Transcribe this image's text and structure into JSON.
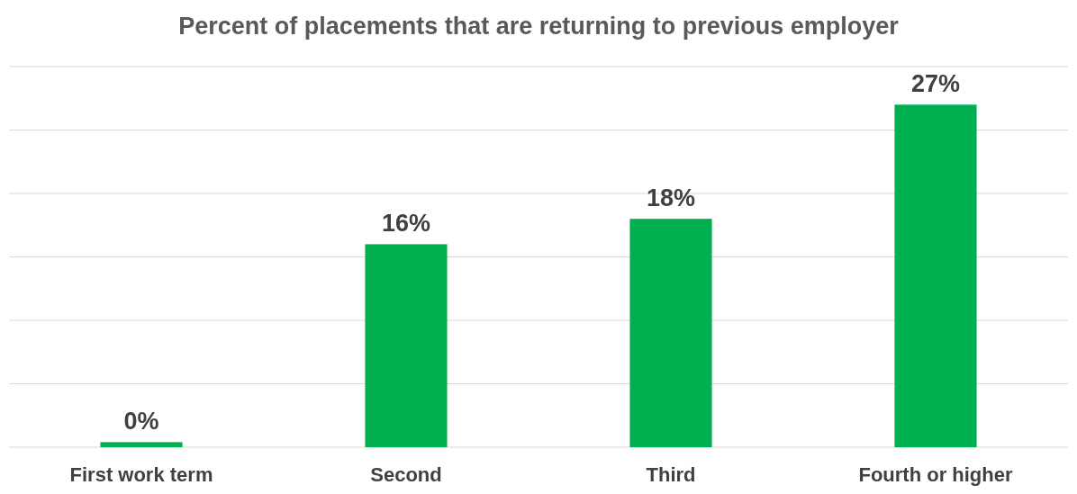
{
  "chart_data": {
    "type": "bar",
    "title": "Percent of placements that are returning to previous employer",
    "categories": [
      "First work term",
      "Second",
      "Third",
      "Fourth or higher"
    ],
    "values": [
      0.4,
      16,
      18,
      27
    ],
    "value_labels": [
      "0%",
      "16%",
      "18%",
      "27%"
    ],
    "color": "#00b050",
    "ylim": [
      0,
      30
    ],
    "yticks": [
      {
        "value": 0,
        "label": null
      },
      {
        "value": 5,
        "label": null
      },
      {
        "value": 10,
        "label": null
      },
      {
        "value": 15,
        "label": null
      },
      {
        "value": 20,
        "label": null
      },
      {
        "value": 25,
        "label": null
      },
      {
        "value": 30,
        "label": null
      }
    ],
    "grid": "y",
    "tick_labels": "x"
  }
}
